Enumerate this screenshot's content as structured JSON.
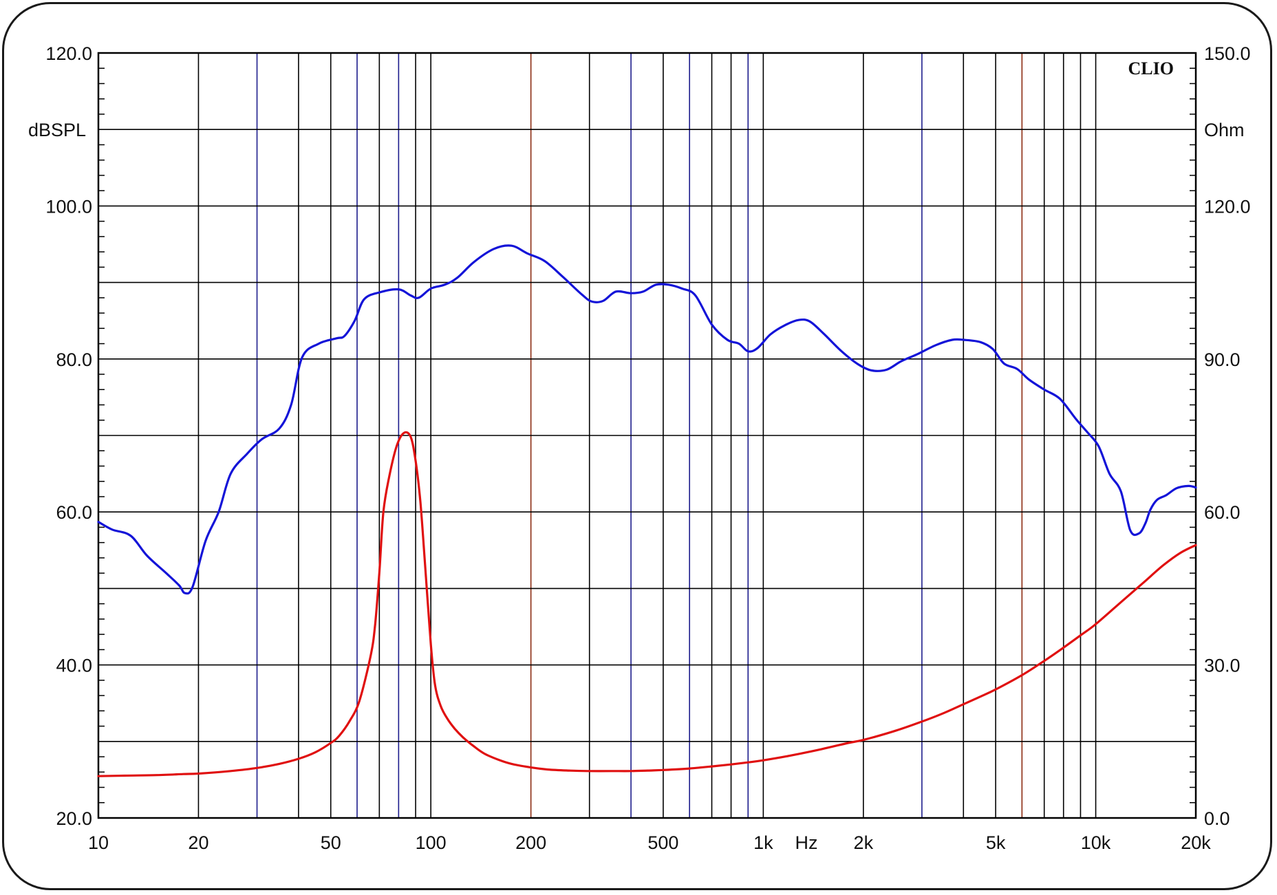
{
  "chart_data": {
    "type": "line",
    "brand": "CLIO",
    "x_scale": "log",
    "xlim": [
      10,
      20000
    ],
    "x_tick_values": [
      10,
      20,
      50,
      100,
      200,
      500,
      1000,
      2000,
      5000,
      10000,
      20000
    ],
    "x_tick_labels": [
      "10",
      "20",
      "50",
      "100",
      "200",
      "500",
      "1k",
      "2k",
      "5k",
      "10k",
      "20k"
    ],
    "xlabel": "Hz",
    "left_axis": {
      "label": "dBSPL",
      "ylim": [
        20,
        120
      ],
      "tick_values": [
        20,
        40,
        60,
        80,
        100,
        120
      ],
      "tick_labels": [
        "20.0",
        "40.0",
        "60.0",
        "80.0",
        "100.0",
        "120.0"
      ]
    },
    "right_axis": {
      "label": "Ohm",
      "ylim": [
        0,
        150
      ],
      "tick_values": [
        0,
        30,
        60,
        90,
        120,
        150
      ],
      "tick_labels": [
        "0.0",
        "30.0",
        "60.0",
        "90.0",
        "120.0",
        "150.0"
      ]
    },
    "grid": true,
    "colors": {
      "spl": "#1414d8",
      "impedance": "#e01010",
      "grid": "#000000",
      "grid_blue": "#1c1c8c",
      "grid_red": "#8b2a10"
    },
    "series": [
      {
        "axis": "left",
        "color": "#1414d8",
        "x": [
          10,
          11,
          12.5,
          14,
          16,
          17.5,
          18.2,
          19.2,
          21,
          23,
          25,
          28,
          31,
          35,
          38,
          41,
          46,
          52,
          55,
          59,
          63,
          70,
          80,
          87,
          92,
          100,
          110,
          120,
          135,
          155,
          175,
          195,
          220,
          250,
          285,
          305,
          330,
          360,
          400,
          435,
          475,
          520,
          570,
          625,
          700,
          780,
          845,
          900,
          960,
          1050,
          1160,
          1280,
          1380,
          1520,
          1720,
          1930,
          2120,
          2350,
          2600,
          2900,
          3300,
          3700,
          4000,
          4500,
          4900,
          5300,
          5800,
          6300,
          7000,
          7800,
          8700,
          9400,
          10200,
          11000,
          11900,
          12700,
          13500,
          14100,
          14600,
          15300,
          16300,
          17500,
          19000,
          20000
        ],
        "y": [
          58.7,
          57.7,
          56.9,
          54.3,
          52.0,
          50.4,
          49.4,
          50.2,
          56.2,
          60.0,
          65.0,
          67.6,
          69.5,
          70.9,
          74.0,
          80.2,
          82.0,
          82.7,
          83.0,
          85.0,
          87.8,
          88.7,
          89.1,
          88.3,
          88.0,
          89.2,
          89.7,
          90.6,
          92.7,
          94.4,
          94.8,
          93.8,
          92.8,
          90.7,
          88.4,
          87.5,
          87.6,
          88.8,
          88.6,
          88.8,
          89.7,
          89.7,
          89.2,
          88.3,
          84.5,
          82.5,
          82.0,
          81.0,
          81.4,
          83.2,
          84.4,
          85.1,
          84.9,
          83.3,
          81.0,
          79.3,
          78.5,
          78.6,
          79.7,
          80.6,
          81.8,
          82.5,
          82.5,
          82.2,
          81.3,
          79.4,
          78.7,
          77.3,
          76.0,
          74.8,
          72.2,
          70.5,
          68.6,
          65.0,
          62.7,
          57.6,
          57.2,
          58.5,
          60.3,
          61.6,
          62.2,
          63.1,
          63.4,
          63.2
        ]
      },
      {
        "axis": "right",
        "color": "#e01010",
        "x": [
          10,
          12,
          15,
          18,
          20,
          25,
          30,
          35,
          40,
          45,
          50,
          53,
          57,
          61,
          66,
          68,
          70,
          72,
          75,
          79,
          83,
          87,
          90,
          93,
          96,
          100,
          103,
          107,
          112,
          118,
          125,
          135,
          145,
          160,
          175,
          200,
          225,
          260,
          300,
          350,
          400,
          450,
          500,
          600,
          700,
          800,
          900,
          1000,
          1200,
          1500,
          1800,
          2000,
          2500,
          3000,
          3500,
          4000,
          4500,
          5000,
          6000,
          7000,
          8000,
          9000,
          10000,
          12000,
          14000,
          16000,
          18000,
          20000
        ],
        "y": [
          8.2,
          8.3,
          8.4,
          8.6,
          8.7,
          9.2,
          9.8,
          10.6,
          11.6,
          12.9,
          14.7,
          16.1,
          19.0,
          23.0,
          32.0,
          38.0,
          48.0,
          60.0,
          67.0,
          73.0,
          75.5,
          74.7,
          70.0,
          62.0,
          50.0,
          34.0,
          26.0,
          22.0,
          19.5,
          17.5,
          15.8,
          14.0,
          12.6,
          11.4,
          10.6,
          9.9,
          9.5,
          9.3,
          9.2,
          9.2,
          9.2,
          9.3,
          9.4,
          9.7,
          10.1,
          10.5,
          10.9,
          11.3,
          12.2,
          13.5,
          14.7,
          15.3,
          17.1,
          18.9,
          20.6,
          22.3,
          23.8,
          25.2,
          28.0,
          30.8,
          33.4,
          35.8,
          38.0,
          42.5,
          46.3,
          49.6,
          52.0,
          53.5
        ]
      }
    ]
  }
}
